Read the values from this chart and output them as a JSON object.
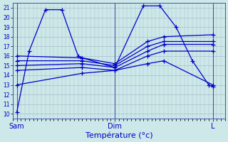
{
  "xlabel": "Température (°c)",
  "bg_color": "#cce8e8",
  "plot_bg_color": "#cce8e8",
  "grid_color": "#aabbcc",
  "line_color": "#0000cc",
  "ylim": [
    9.5,
    21.5
  ],
  "yticks": [
    10,
    11,
    12,
    13,
    14,
    15,
    16,
    17,
    18,
    19,
    20,
    21
  ],
  "xlim": [
    0,
    52
  ],
  "day_labels": [
    "Sam",
    "Dim",
    "L"
  ],
  "day_positions": [
    1,
    25,
    49
  ],
  "series": [
    {
      "x": [
        1,
        4,
        8,
        12,
        16,
        17,
        25,
        32,
        36,
        40,
        44,
        48,
        49
      ],
      "y": [
        10.2,
        16.5,
        20.8,
        20.8,
        16.0,
        15.8,
        14.8,
        21.2,
        21.2,
        19.0,
        15.5,
        13.0,
        12.8
      ]
    },
    {
      "x": [
        1,
        17,
        25,
        33,
        37,
        49
      ],
      "y": [
        16.0,
        15.8,
        15.2,
        17.5,
        18.0,
        18.2
      ]
    },
    {
      "x": [
        1,
        17,
        25,
        33,
        37,
        49
      ],
      "y": [
        15.5,
        15.5,
        15.0,
        17.0,
        17.5,
        17.5
      ]
    },
    {
      "x": [
        1,
        17,
        25,
        33,
        37,
        49
      ],
      "y": [
        15.0,
        15.2,
        14.8,
        16.5,
        17.2,
        17.2
      ]
    },
    {
      "x": [
        1,
        17,
        25,
        33,
        37,
        49
      ],
      "y": [
        14.5,
        14.8,
        14.5,
        16.0,
        16.5,
        16.5
      ]
    },
    {
      "x": [
        1,
        17,
        25,
        33,
        37,
        49
      ],
      "y": [
        13.0,
        14.2,
        14.5,
        15.2,
        15.5,
        13.0
      ]
    }
  ]
}
